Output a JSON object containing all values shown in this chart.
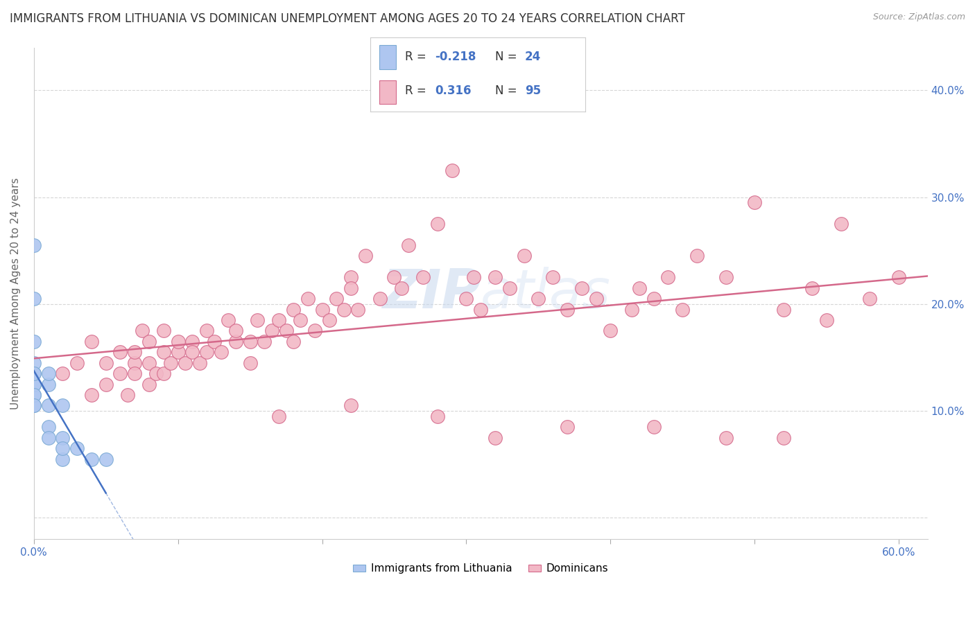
{
  "title": "IMMIGRANTS FROM LITHUANIA VS DOMINICAN UNEMPLOYMENT AMONG AGES 20 TO 24 YEARS CORRELATION CHART",
  "source": "Source: ZipAtlas.com",
  "ylabel": "Unemployment Among Ages 20 to 24 years",
  "r_lithuania": -0.218,
  "n_lithuania": 24,
  "r_dominican": 0.316,
  "n_dominican": 95,
  "xlim": [
    0.0,
    0.62
  ],
  "ylim": [
    -0.02,
    0.44
  ],
  "x_ticks": [
    0.0,
    0.1,
    0.2,
    0.3,
    0.4,
    0.5,
    0.6
  ],
  "x_tick_labels": [
    "0.0%",
    "",
    "",
    "",
    "",
    "",
    "60.0%"
  ],
  "y_ticks": [
    0.0,
    0.1,
    0.2,
    0.3,
    0.4
  ],
  "y_ticks_right": [
    0.1,
    0.2,
    0.3,
    0.4
  ],
  "y_tick_labels_right": [
    "10.0%",
    "20.0%",
    "30.0%",
    "40.0%"
  ],
  "color_lithuania": "#aec6f0",
  "color_dominican": "#f2b8c6",
  "line_color_lithuania": "#4472c4",
  "line_color_dominican": "#d4688a",
  "edge_color_lithuania": "#7baad4",
  "edge_color_dominican": "#d4688a",
  "background_color": "#ffffff",
  "watermark": "ZIPatlas",
  "legend_label_lithuania": "Immigrants from Lithuania",
  "legend_label_dominican": "Dominicans",
  "dominican_x": [
    0.02,
    0.03,
    0.04,
    0.04,
    0.05,
    0.05,
    0.06,
    0.06,
    0.065,
    0.07,
    0.07,
    0.07,
    0.075,
    0.08,
    0.08,
    0.08,
    0.085,
    0.09,
    0.09,
    0.09,
    0.095,
    0.1,
    0.1,
    0.105,
    0.11,
    0.11,
    0.115,
    0.12,
    0.12,
    0.125,
    0.13,
    0.135,
    0.14,
    0.14,
    0.15,
    0.15,
    0.155,
    0.16,
    0.165,
    0.17,
    0.175,
    0.18,
    0.18,
    0.185,
    0.19,
    0.195,
    0.2,
    0.205,
    0.21,
    0.215,
    0.22,
    0.22,
    0.225,
    0.23,
    0.24,
    0.25,
    0.255,
    0.26,
    0.27,
    0.28,
    0.29,
    0.3,
    0.305,
    0.31,
    0.32,
    0.33,
    0.34,
    0.35,
    0.36,
    0.37,
    0.38,
    0.39,
    0.4,
    0.415,
    0.42,
    0.43,
    0.44,
    0.45,
    0.46,
    0.48,
    0.5,
    0.52,
    0.54,
    0.56,
    0.58,
    0.6,
    0.55,
    0.48,
    0.52,
    0.43,
    0.37,
    0.28,
    0.32,
    0.17,
    0.22
  ],
  "dominican_y": [
    0.135,
    0.145,
    0.115,
    0.165,
    0.125,
    0.145,
    0.135,
    0.155,
    0.115,
    0.145,
    0.135,
    0.155,
    0.175,
    0.125,
    0.145,
    0.165,
    0.135,
    0.155,
    0.135,
    0.175,
    0.145,
    0.155,
    0.165,
    0.145,
    0.165,
    0.155,
    0.145,
    0.175,
    0.155,
    0.165,
    0.155,
    0.185,
    0.165,
    0.175,
    0.145,
    0.165,
    0.185,
    0.165,
    0.175,
    0.185,
    0.175,
    0.195,
    0.165,
    0.185,
    0.205,
    0.175,
    0.195,
    0.185,
    0.205,
    0.195,
    0.225,
    0.215,
    0.195,
    0.245,
    0.205,
    0.225,
    0.215,
    0.255,
    0.225,
    0.275,
    0.325,
    0.205,
    0.225,
    0.195,
    0.225,
    0.215,
    0.245,
    0.205,
    0.225,
    0.195,
    0.215,
    0.205,
    0.175,
    0.195,
    0.215,
    0.205,
    0.225,
    0.195,
    0.245,
    0.225,
    0.295,
    0.195,
    0.215,
    0.275,
    0.205,
    0.225,
    0.185,
    0.075,
    0.075,
    0.085,
    0.085,
    0.095,
    0.075,
    0.095,
    0.105
  ],
  "lithuania_x": [
    0.0,
    0.0,
    0.0,
    0.0,
    0.0,
    0.0,
    0.0,
    0.0,
    0.0,
    0.0,
    0.0,
    0.0,
    0.01,
    0.01,
    0.01,
    0.01,
    0.01,
    0.02,
    0.02,
    0.02,
    0.02,
    0.03,
    0.04,
    0.05
  ],
  "lithuania_y": [
    0.105,
    0.115,
    0.125,
    0.135,
    0.125,
    0.145,
    0.115,
    0.135,
    0.255,
    0.105,
    0.205,
    0.165,
    0.125,
    0.135,
    0.105,
    0.085,
    0.075,
    0.105,
    0.075,
    0.055,
    0.065,
    0.065,
    0.055,
    0.055
  ]
}
